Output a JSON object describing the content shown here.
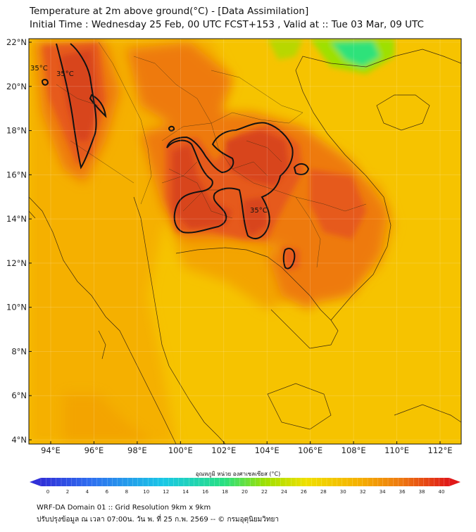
{
  "header": {
    "title_line1": "Temperature at 2m above ground(°C) - [Data Assimilation]",
    "title_line2": "Initial Time : Wednesday 25 Feb, 00 UTC FCST+153 , Valid at :: Tue 03 Mar, 09 UTC"
  },
  "map": {
    "lat_labels": [
      "22°N",
      "20°N",
      "18°N",
      "16°N",
      "14°N",
      "12°N",
      "10°N",
      "8°N",
      "6°N",
      "4°N"
    ],
    "lon_labels": [
      "94°E",
      "96°E",
      "98°E",
      "100°E",
      "102°E",
      "104°E",
      "106°E",
      "108°E",
      "110°E",
      "112°E"
    ],
    "contour_labels": [
      "35°C",
      "35°C",
      "35°C"
    ],
    "colors": {
      "base": "#f6c300",
      "warm": "#f3a400",
      "hot": "#ee7a10",
      "hotter": "#e65a1a",
      "hottest": "#d8441c",
      "cool": "#9ee000",
      "cold": "#2ee27a",
      "coast": "#3a2a10",
      "contour": "#111111"
    }
  },
  "colorbar": {
    "title": "อุณหภูมิ หน่วย องศาเซลเซียส (°C)",
    "ticks": [
      "0",
      "2",
      "4",
      "6",
      "8",
      "10",
      "12",
      "14",
      "16",
      "18",
      "20",
      "22",
      "24",
      "26",
      "28",
      "30",
      "32",
      "34",
      "36",
      "38",
      "40"
    ]
  },
  "footer": {
    "line1": "WRF-DA Domain 01 :: Grid Resolution 9km x 9km",
    "line2": "ปรับปรุงข้อมูล ณ เวลา 07:00น. วัน พ. ที่ 25 ก.พ. 2569 -- © กรมอุตุนิยมวิทยา"
  }
}
